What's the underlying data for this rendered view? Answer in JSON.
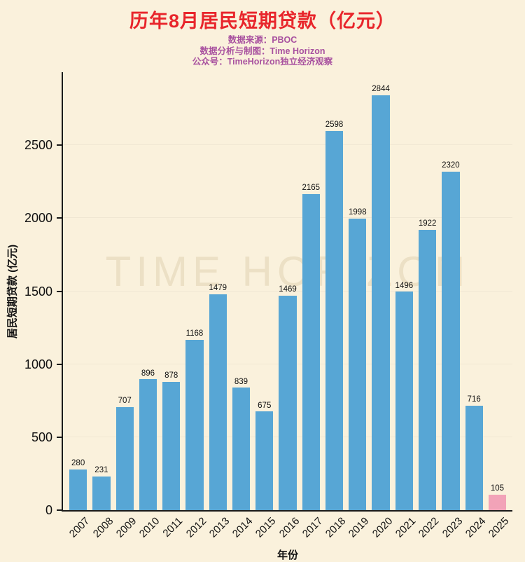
{
  "chart": {
    "title": "历年8月居民短期贷款（亿元）",
    "subtitle_lines": [
      "数据来源：PBOC",
      "数据分析与制图：Time Horizon",
      "公众号：TimeHorizon独立经济观察"
    ],
    "watermark": "TIME HORIZON",
    "xlabel": "年份",
    "ylabel": "居民短期贷款 (亿元)"
  },
  "chart_data": {
    "type": "bar",
    "title": "历年8月居民短期贷款（亿元）",
    "xlabel": "年份",
    "ylabel": "居民短期贷款 (亿元)",
    "categories": [
      "2007",
      "2008",
      "2009",
      "2010",
      "2011",
      "2012",
      "2013",
      "2014",
      "2015",
      "2016",
      "2017",
      "2018",
      "2019",
      "2020",
      "2021",
      "2022",
      "2023",
      "2024",
      "2025"
    ],
    "values": [
      280,
      231,
      707,
      896,
      878,
      1168,
      1479,
      839,
      675,
      1469,
      2165,
      2598,
      1998,
      2844,
      1496,
      1922,
      2320,
      716,
      105
    ],
    "bar_color": "#57a6d5",
    "highlight_color": "#f2a3b8",
    "highlight_index": 18,
    "ylim": [
      0,
      3000
    ],
    "yticks": [
      0,
      500,
      1000,
      1500,
      2000,
      2500
    ],
    "grid": false,
    "legend": "none"
  },
  "colors": {
    "background": "#faf1dc",
    "title": "#e8252b",
    "subtitle": "#a8519f",
    "bar_blue": "#57a6d5",
    "bar_pink": "#f2a3b8",
    "axis": "#1a1a1a"
  }
}
